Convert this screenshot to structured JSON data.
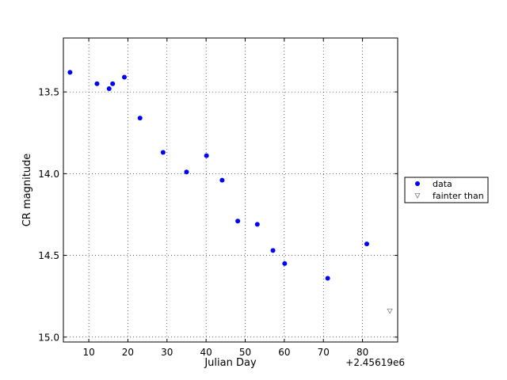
{
  "chart_data": {
    "type": "scatter",
    "xlabel": "Julian Day",
    "ylabel": "CR magnitude",
    "x_offset_label": "+2.45619e6",
    "xlim": [
      3.5,
      89
    ],
    "ylim": [
      15.03,
      13.17
    ],
    "y_inverted": true,
    "grid": true,
    "x_ticks": [
      10,
      20,
      30,
      40,
      50,
      60,
      70,
      80
    ],
    "x_tick_labels": [
      "10",
      "20",
      "30",
      "40",
      "50",
      "60",
      "70",
      "80"
    ],
    "y_ticks": [
      13.5,
      14.0,
      14.5,
      15.0
    ],
    "y_tick_labels": [
      "13.5",
      "14.0",
      "14.5",
      "15.0"
    ],
    "legend_position": "outside-right",
    "series": [
      {
        "name": "data",
        "marker": "circle",
        "color": "#0000ff",
        "x": [
          5.2,
          12.1,
          15.2,
          16.1,
          19.1,
          23.1,
          29.0,
          35.0,
          40.1,
          44.1,
          48.1,
          53.1,
          57.1,
          60.1,
          71.1,
          81.1
        ],
        "y": [
          13.38,
          13.45,
          13.48,
          13.45,
          13.41,
          13.66,
          13.87,
          13.99,
          13.89,
          14.04,
          14.29,
          14.31,
          14.47,
          14.55,
          14.64,
          14.43
        ]
      },
      {
        "name": "fainter than",
        "marker": "triangle-down",
        "color": "#808080",
        "x": [
          87.0
        ],
        "y": [
          14.84
        ]
      }
    ]
  }
}
